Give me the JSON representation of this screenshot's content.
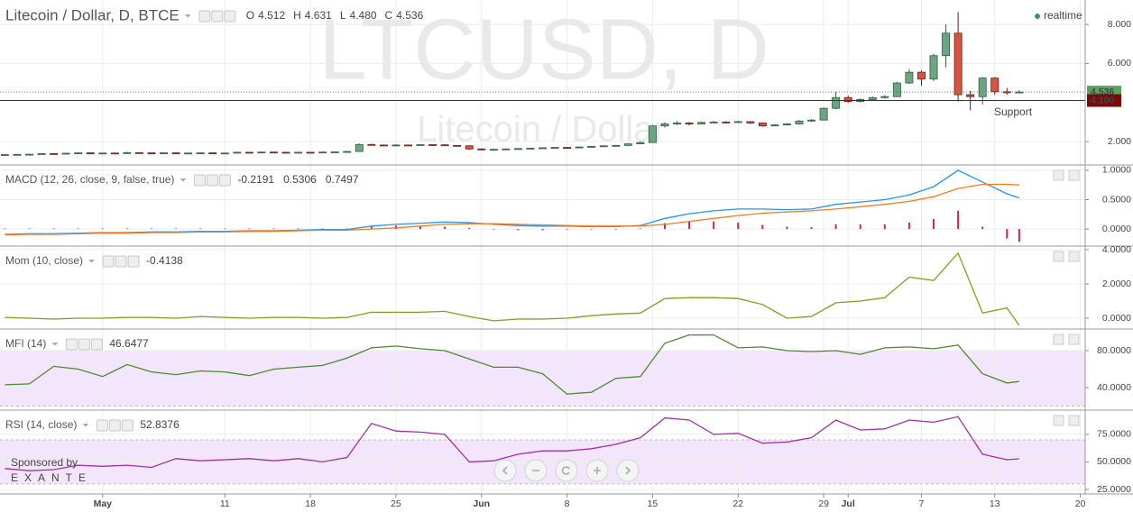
{
  "status": "realtime",
  "sponsor": {
    "line1": "Sponsored by",
    "line2": "EXANTE"
  },
  "chart_data": [
    {
      "type": "candlestick",
      "title": "Litecoin / Dollar, D, BTCE",
      "watermark": {
        "symbol": "LTCUSD, D",
        "description": "Litecoin / Dollar"
      },
      "ohlc_legend": [
        {
          "key": "O",
          "label": "4.512"
        },
        {
          "key": "H",
          "label": "4.631"
        },
        {
          "key": "L",
          "label": "4.480"
        },
        {
          "key": "C",
          "label": "4.536"
        }
      ],
      "annotation": "Support",
      "up_color": "#6ba583",
      "down_color": "#d75442",
      "x": [
        -8,
        -7,
        -6,
        -5,
        -4,
        -3,
        -2,
        -1,
        0,
        1,
        2,
        3,
        4,
        5,
        6,
        7,
        8,
        9,
        10,
        11,
        12,
        13,
        14,
        15,
        16,
        17,
        18,
        19,
        20,
        21,
        22,
        23,
        24,
        25,
        26,
        27,
        28,
        29,
        30,
        31,
        32,
        33,
        34,
        35,
        36,
        37,
        38,
        39,
        40,
        41,
        42,
        43,
        44,
        45,
        46,
        47,
        48,
        49,
        50,
        51,
        52,
        53,
        54,
        55,
        56,
        57,
        58,
        59,
        60,
        61,
        62,
        63,
        64,
        65,
        66,
        67,
        68,
        69,
        70,
        71,
        72,
        73,
        74,
        75
      ],
      "open": [
        1.32,
        1.33,
        1.34,
        1.35,
        1.38,
        1.36,
        1.4,
        1.42,
        1.4,
        1.41,
        1.4,
        1.43,
        1.42,
        1.41,
        1.42,
        1.4,
        1.41,
        1.42,
        1.4,
        1.41,
        1.45,
        1.44,
        1.46,
        1.45,
        1.44,
        1.45,
        1.44,
        1.46,
        1.47,
        1.49,
        1.85,
        1.82,
        1.8,
        1.82,
        1.81,
        1.84,
        1.83,
        1.8,
        1.78,
        1.62,
        1.58,
        1.6,
        1.62,
        1.64,
        1.66,
        1.68,
        1.7,
        1.68,
        1.72,
        1.75,
        1.78,
        1.8,
        1.88,
        1.95,
        2.8,
        2.9,
        2.95,
        2.9,
        2.98,
        3.0,
        2.98,
        3.02,
        2.95,
        2.8,
        2.85,
        2.9,
        3.05,
        3.1,
        3.7,
        4.25,
        4.05,
        4.15,
        4.25,
        4.3,
        5.0,
        5.55,
        5.2,
        6.4,
        7.55,
        4.4,
        4.3,
        5.25,
        4.55,
        4.512
      ],
      "high": [
        1.35,
        1.36,
        1.37,
        1.4,
        1.4,
        1.42,
        1.45,
        1.44,
        1.43,
        1.43,
        1.48,
        1.45,
        1.44,
        1.44,
        1.43,
        1.43,
        1.44,
        1.43,
        1.43,
        1.48,
        1.47,
        1.48,
        1.47,
        1.46,
        1.47,
        1.46,
        1.48,
        1.49,
        1.52,
        1.9,
        1.88,
        1.85,
        1.86,
        1.85,
        1.87,
        1.86,
        1.85,
        1.82,
        1.8,
        1.66,
        1.63,
        1.65,
        1.66,
        1.68,
        1.7,
        1.72,
        1.72,
        1.75,
        1.78,
        1.8,
        1.83,
        1.92,
        2.0,
        2.85,
        2.98,
        3.05,
        3.0,
        3.02,
        3.05,
        3.04,
        3.06,
        3.04,
        2.98,
        2.9,
        2.94,
        3.1,
        3.15,
        3.75,
        4.55,
        4.35,
        4.22,
        4.3,
        4.38,
        5.05,
        5.7,
        5.65,
        6.5,
        8.0,
        8.63,
        4.6,
        5.3,
        5.3,
        4.75,
        4.631
      ],
      "low": [
        1.31,
        1.32,
        1.33,
        1.34,
        1.35,
        1.35,
        1.39,
        1.38,
        1.39,
        1.38,
        1.39,
        1.4,
        1.4,
        1.4,
        1.38,
        1.39,
        1.4,
        1.38,
        1.39,
        1.4,
        1.42,
        1.43,
        1.43,
        1.42,
        1.43,
        1.42,
        1.43,
        1.45,
        1.46,
        1.48,
        1.79,
        1.77,
        1.78,
        1.79,
        1.8,
        1.8,
        1.78,
        1.75,
        1.58,
        1.55,
        1.56,
        1.58,
        1.6,
        1.62,
        1.64,
        1.66,
        1.65,
        1.67,
        1.7,
        1.73,
        1.76,
        1.79,
        1.86,
        1.93,
        2.72,
        2.85,
        2.82,
        2.88,
        2.94,
        2.93,
        2.96,
        2.9,
        2.76,
        2.78,
        2.82,
        2.88,
        3.0,
        3.08,
        3.65,
        3.98,
        4.0,
        4.1,
        4.2,
        4.28,
        4.95,
        4.85,
        5.1,
        5.8,
        4.05,
        3.6,
        3.9,
        4.4,
        4.4,
        4.48
      ],
      "close": [
        1.33,
        1.34,
        1.35,
        1.38,
        1.36,
        1.4,
        1.42,
        1.4,
        1.41,
        1.4,
        1.43,
        1.42,
        1.41,
        1.42,
        1.4,
        1.41,
        1.42,
        1.4,
        1.41,
        1.45,
        1.44,
        1.46,
        1.45,
        1.44,
        1.45,
        1.44,
        1.46,
        1.47,
        1.49,
        1.85,
        1.82,
        1.8,
        1.82,
        1.81,
        1.84,
        1.83,
        1.8,
        1.78,
        1.62,
        1.58,
        1.6,
        1.62,
        1.64,
        1.66,
        1.68,
        1.7,
        1.68,
        1.72,
        1.75,
        1.78,
        1.8,
        1.88,
        1.95,
        2.8,
        2.9,
        2.95,
        2.9,
        2.98,
        3.0,
        2.98,
        3.02,
        2.95,
        2.8,
        2.85,
        2.9,
        3.05,
        3.1,
        3.7,
        4.25,
        4.05,
        4.15,
        4.25,
        4.3,
        5.0,
        5.55,
        5.2,
        6.4,
        7.55,
        4.4,
        4.3,
        5.25,
        4.55,
        4.5,
        4.536
      ],
      "price_lines": [
        {
          "value": 4.536,
          "label": "4.536",
          "color": "#5aa55e",
          "style": "dotted"
        },
        {
          "value": 4.1,
          "label": "4.100",
          "color": "#7a0a0a",
          "style": "solid"
        }
      ],
      "xlim": [
        -8.4,
        80.4
      ],
      "xticks": [
        {
          "value": 0,
          "label": "May"
        },
        {
          "value": 10,
          "label": "11"
        },
        {
          "value": 17,
          "label": "18"
        },
        {
          "value": 24,
          "label": "25"
        },
        {
          "value": 31,
          "label": "Jun"
        },
        {
          "value": 38,
          "label": "8"
        },
        {
          "value": 45,
          "label": "15"
        },
        {
          "value": 52,
          "label": "22"
        },
        {
          "value": 59,
          "label": "29"
        },
        {
          "value": 61,
          "label": "Jul"
        },
        {
          "value": 67,
          "label": "7"
        },
        {
          "value": 73,
          "label": "13"
        },
        {
          "value": 80,
          "label": "20"
        }
      ],
      "ylim": [
        0.8,
        9.25
      ],
      "yticks": [
        {
          "value": 2,
          "label": "2.000"
        },
        {
          "value": 6,
          "label": "6.000"
        },
        {
          "value": 8,
          "label": "8.000"
        }
      ]
    },
    {
      "type": "line",
      "title": "MACD (12, 26, close, 9, false, true)",
      "x": [
        -8,
        -6,
        -4,
        -2,
        0,
        2,
        4,
        6,
        8,
        10,
        12,
        14,
        16,
        18,
        20,
        22,
        24,
        26,
        28,
        30,
        32,
        34,
        36,
        38,
        40,
        42,
        44,
        46,
        48,
        50,
        52,
        54,
        56,
        58,
        60,
        62,
        64,
        66,
        68,
        70,
        72,
        74,
        75
      ],
      "series": [
        {
          "type": "bar",
          "color": "#d0216e",
          "legend_label": "-0.2191",
          "values": [
            0.01,
            0.01,
            0.01,
            0.01,
            0.01,
            0.01,
            0.01,
            0.01,
            0.01,
            0.01,
            0.01,
            0.01,
            0.01,
            0.01,
            0.01,
            0.05,
            0.06,
            0.05,
            0.04,
            0.02,
            -0.01,
            -0.02,
            -0.02,
            -0.01,
            -0.01,
            -0.01,
            0.01,
            0.1,
            0.13,
            0.13,
            0.11,
            0.07,
            0.04,
            0.03,
            0.08,
            0.08,
            0.08,
            0.11,
            0.17,
            0.31,
            0.04,
            -0.16,
            -0.2191
          ]
        },
        {
          "type": "line",
          "color": "#2196f3",
          "legend_label": "0.5306",
          "values": [
            -0.09,
            -0.08,
            -0.08,
            -0.07,
            -0.06,
            -0.06,
            -0.05,
            -0.05,
            -0.04,
            -0.04,
            -0.03,
            -0.03,
            -0.02,
            -0.01,
            -0.01,
            0.05,
            0.08,
            0.1,
            0.12,
            0.11,
            0.08,
            0.06,
            0.05,
            0.05,
            0.04,
            0.04,
            0.06,
            0.18,
            0.26,
            0.31,
            0.34,
            0.34,
            0.33,
            0.34,
            0.42,
            0.46,
            0.5,
            0.58,
            0.72,
            1.0,
            0.8,
            0.6,
            0.5306
          ]
        },
        {
          "type": "line",
          "color": "#f57c1f",
          "legend_label": "0.7497",
          "values": [
            -0.1,
            -0.09,
            -0.09,
            -0.08,
            -0.07,
            -0.07,
            -0.06,
            -0.06,
            -0.05,
            -0.05,
            -0.04,
            -0.04,
            -0.03,
            -0.02,
            -0.02,
            0.0,
            0.02,
            0.05,
            0.08,
            0.09,
            0.09,
            0.08,
            0.07,
            0.06,
            0.05,
            0.05,
            0.05,
            0.08,
            0.13,
            0.18,
            0.23,
            0.27,
            0.29,
            0.31,
            0.34,
            0.38,
            0.42,
            0.47,
            0.55,
            0.69,
            0.76,
            0.76,
            0.7497
          ]
        }
      ],
      "ylim": [
        -0.29,
        1.09
      ],
      "yticks": [
        {
          "value": 0,
          "label": "0.0000"
        },
        {
          "value": 0.5,
          "label": "0.5000"
        },
        {
          "value": 1,
          "label": "1.0000"
        }
      ]
    },
    {
      "type": "line",
      "title": "Mom (10, close)",
      "x": [
        -8,
        -6,
        -4,
        -2,
        0,
        2,
        4,
        6,
        8,
        10,
        12,
        14,
        16,
        18,
        20,
        22,
        24,
        26,
        28,
        30,
        32,
        34,
        36,
        38,
        40,
        42,
        44,
        46,
        48,
        50,
        52,
        54,
        56,
        58,
        60,
        62,
        64,
        66,
        68,
        70,
        72,
        74,
        75
      ],
      "series": [
        {
          "type": "line",
          "color": "#8a9a1b",
          "legend_label": "-0.4138",
          "values": [
            0.05,
            0,
            -0.05,
            0,
            0,
            0.05,
            0.05,
            0,
            0.1,
            0.05,
            0,
            0.05,
            0.05,
            0,
            0.05,
            0.35,
            0.35,
            0.35,
            0.4,
            0.1,
            -0.15,
            -0.05,
            -0.05,
            0,
            0.15,
            0.25,
            0.3,
            1.15,
            1.2,
            1.2,
            1.15,
            0.8,
            0,
            0.1,
            0.9,
            1,
            1.2,
            2.4,
            2.2,
            3.8,
            0.3,
            0.6,
            -0.4138
          ]
        }
      ],
      "ylim": [
        -0.63,
        4.21
      ],
      "yticks": [
        {
          "value": 0,
          "label": "0.0000"
        },
        {
          "value": 2,
          "label": "2.0000"
        },
        {
          "value": 4,
          "label": "4.0000"
        }
      ]
    },
    {
      "type": "line",
      "title": "MFI (14)",
      "x": [
        -8,
        -6,
        -4,
        -2,
        0,
        2,
        4,
        6,
        8,
        10,
        12,
        14,
        16,
        18,
        20,
        22,
        24,
        26,
        28,
        30,
        32,
        34,
        36,
        38,
        40,
        42,
        44,
        46,
        48,
        50,
        52,
        54,
        56,
        58,
        60,
        62,
        64,
        66,
        68,
        70,
        72,
        74,
        75
      ],
      "series": [
        {
          "type": "line",
          "color": "#4a8c2a",
          "legend_label": "46.6477",
          "values": [
            43,
            44,
            63,
            60,
            52,
            65,
            57,
            54,
            58,
            57,
            53,
            60,
            62,
            64,
            72,
            83,
            85,
            82,
            80,
            71,
            62,
            62,
            55,
            33,
            35,
            50,
            52,
            88,
            97,
            97,
            83,
            84,
            80,
            79,
            80,
            76,
            83,
            84,
            82,
            86,
            55,
            45,
            46.6477
          ]
        }
      ],
      "band": [
        20,
        80
      ],
      "band_color": "#f3e5fb",
      "ylim": [
        15.6,
        103.4
      ],
      "yticks": [
        {
          "value": 40,
          "label": "40.0000"
        },
        {
          "value": 80,
          "label": "80.0000"
        }
      ]
    },
    {
      "type": "line",
      "title": "RSI (14, close)",
      "x": [
        -8,
        -6,
        -4,
        -2,
        0,
        2,
        4,
        6,
        8,
        10,
        12,
        14,
        16,
        18,
        20,
        22,
        24,
        26,
        28,
        30,
        32,
        34,
        36,
        38,
        40,
        42,
        44,
        46,
        48,
        50,
        52,
        54,
        56,
        58,
        60,
        62,
        64,
        66,
        68,
        70,
        72,
        74,
        75
      ],
      "series": [
        {
          "type": "line",
          "color": "#a12fa8",
          "legend_label": "52.8376",
          "values": [
            44,
            42,
            43,
            47,
            46,
            47,
            45,
            53,
            51,
            52,
            53,
            51,
            53,
            50,
            54,
            85,
            78,
            77,
            75,
            50,
            51,
            57,
            60,
            60,
            62,
            66,
            72,
            90,
            88,
            75,
            76,
            67,
            68,
            72,
            88,
            79,
            80,
            88,
            86,
            91,
            57,
            52,
            52.8376
          ]
        }
      ],
      "band": [
        30,
        70
      ],
      "band_color": "#f3e5fb",
      "ylim": [
        20.9,
        97
      ],
      "yticks": [
        {
          "value": 25,
          "label": "25.0000"
        },
        {
          "value": 50,
          "label": "50.0000"
        },
        {
          "value": 75,
          "label": "75.0000"
        }
      ]
    }
  ]
}
